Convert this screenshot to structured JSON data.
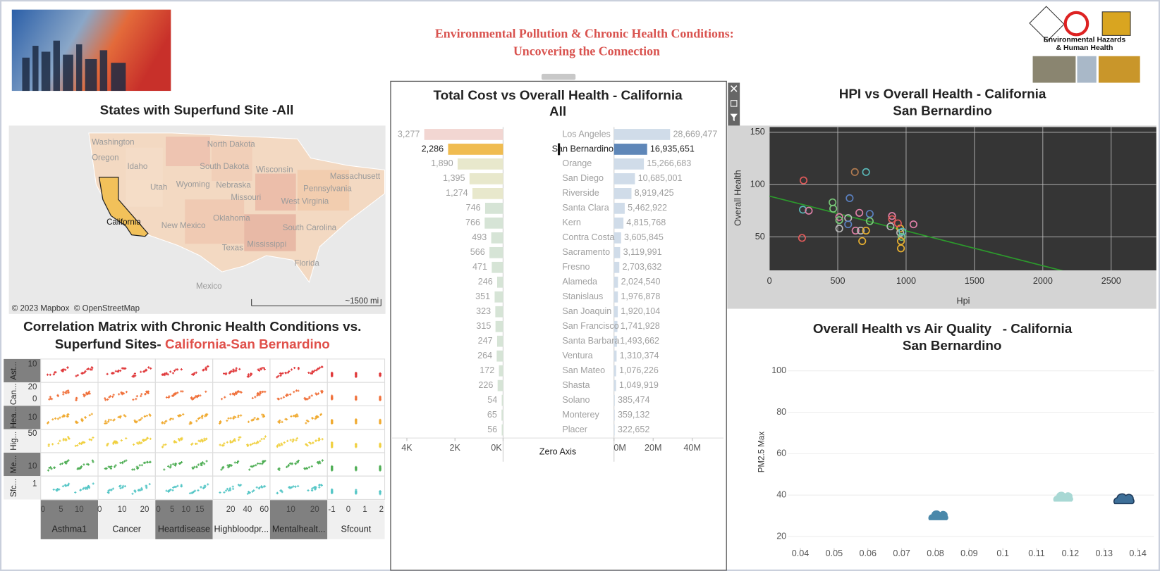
{
  "header": {
    "title_lines": [
      "Environmental Pollution & Chronic Health Conditions:",
      "Uncovering the Connection"
    ],
    "logo_text": [
      "Environmental Hazards",
      "& Human Health"
    ]
  },
  "map": {
    "title": "States with Superfund Site -All",
    "labels": [
      "Washington",
      "Oregon",
      "Idaho",
      "North Dakota",
      "South Dakota",
      "Wisconsin",
      "Massachusett",
      "Utah",
      "Wyoming",
      "Nebraska",
      "Missouri",
      "Pennsylvania",
      "West Virginia",
      "California",
      "New Mexico",
      "Oklahoma",
      "South Carolina",
      "Texas",
      "Mississippi",
      "Florida",
      "Mexico"
    ],
    "credits": [
      "© 2023 Mapbox",
      "© OpenStreetMap"
    ],
    "scale": "~1500 mi",
    "highlight_color": "#f2c15a"
  },
  "chart_data": [
    {
      "type": "splom",
      "title_lines": [
        "Correlation Matrix with Chronic Health Conditions vs.",
        "Superfund Sites- "
      ],
      "title_highlight": "California-San Bernardino",
      "rows": [
        {
          "label": "Ast...",
          "ticks": [
            10
          ],
          "ylim": [
            0,
            13
          ],
          "color": "#e0383a"
        },
        {
          "label": "Can...",
          "ticks": [
            20,
            0
          ],
          "ylim": [
            -11,
            28
          ],
          "color": "#f0703a"
        },
        {
          "label": "Hea...",
          "ticks": [
            10
          ],
          "ylim": [
            0,
            20
          ],
          "color": "#f0aa30"
        },
        {
          "label": "Hig...",
          "ticks": [
            50
          ],
          "ylim": [
            0,
            62
          ],
          "color": "#f0d040"
        },
        {
          "label": "Me...",
          "ticks": [
            10
          ],
          "ylim": [
            -2,
            27
          ],
          "color": "#4fae55"
        },
        {
          "label": "Sfc...",
          "ticks": [
            1
          ],
          "ylim": [
            -1,
            2
          ],
          "color": "#55c6c6"
        }
      ],
      "columns": [
        {
          "label": "Asthma1",
          "ticks": [
            0,
            5,
            10
          ],
          "xlim": [
            -0.6,
            15.2
          ]
        },
        {
          "label": "Cancer",
          "ticks": [
            0,
            10,
            20
          ],
          "xlim": [
            -0.7,
            24.8
          ]
        },
        {
          "label": "Heartdisease",
          "ticks": [
            0,
            5,
            10,
            15
          ],
          "xlim": [
            -1.1,
            19.7
          ]
        },
        {
          "label": "Highbloodpr...",
          "ticks": [
            20,
            40,
            60
          ],
          "xlim": [
            -1.5,
            67
          ]
        },
        {
          "label": "Mentalhealt...",
          "ticks": [
            10,
            20
          ],
          "xlim": [
            1.3,
            25.3
          ]
        },
        {
          "label": "Sfcount",
          "ticks": [
            -1,
            0,
            1,
            2
          ],
          "xlim": [
            -1.27,
            2.2
          ]
        }
      ]
    },
    {
      "type": "diverging-bar",
      "title_lines": [
        "Total Cost vs Overall Health - California",
        "All"
      ],
      "center_label": "Zero Axis",
      "selected_index": 1,
      "categories": [
        "Los Angeles",
        "San Bernardino",
        "Orange",
        "San Diego",
        "Riverside",
        "Santa Clara",
        "Kern",
        "Contra Costa",
        "Sacramento",
        "Fresno",
        "Alameda",
        "Stanislaus",
        "San Joaquin",
        "San Francisco",
        "Santa Barbara",
        "Ventura",
        "San Mateo",
        "Shasta",
        "Solano",
        "Monterey",
        "Placer"
      ],
      "left": {
        "values": [
          3277,
          2286,
          1890,
          1395,
          1274,
          746,
          766,
          493,
          566,
          471,
          246,
          351,
          323,
          315,
          247,
          264,
          172,
          226,
          54,
          65,
          56
        ],
        "value_labels": [
          "3,277",
          "2,286",
          "1,890",
          "1,395",
          "1,274",
          "746",
          "766",
          "493",
          "566",
          "471",
          "246",
          "351",
          "323",
          "315",
          "247",
          "264",
          "172",
          "226",
          "54",
          "65",
          "56"
        ],
        "colors": [
          "#f2d6d2",
          "#f0bc50",
          "#e8e8cc",
          "#e8e8cc",
          "#e8e8cc",
          "#d6e4d6",
          "#d6e4d6",
          "#d6e4d6",
          "#d6e4d6",
          "#d6e4d6",
          "#d6e4d6",
          "#d6e4d6",
          "#d6e4d6",
          "#d6e4d6",
          "#d6e4d6",
          "#d6e4d6",
          "#d6e4d6",
          "#d6e4d6",
          "#d6e4d6",
          "#d6e4d6",
          "#d6e4d6"
        ],
        "xlim": [
          0,
          4615
        ],
        "xticks": [
          {
            "value": 4000,
            "label": "4K"
          },
          {
            "value": 2000,
            "label": "2K"
          },
          {
            "value": 0,
            "label": "0K"
          }
        ]
      },
      "right": {
        "values": [
          28669477,
          16935651,
          15266683,
          10685001,
          8919425,
          5462922,
          4815768,
          3605845,
          3119991,
          2703632,
          2024540,
          1976878,
          1920104,
          1741928,
          1493662,
          1310374,
          1076226,
          1049919,
          385474,
          359132,
          322652
        ],
        "value_labels": [
          "28,669,477",
          "16,935,651",
          "15,266,683",
          "10,685,001",
          "8,919,425",
          "5,462,922",
          "4,815,768",
          "3,605,845",
          "3,119,991",
          "2,703,632",
          "2,024,540",
          "1,976,878",
          "1,920,104",
          "1,741,928",
          "1,493,662",
          "1,310,374",
          "1,076,226",
          "1,049,919",
          "385,474",
          "359,132",
          "322,652"
        ],
        "colors": [
          "#d0dce9",
          "#5f87b8",
          "#d0dce9",
          "#d0dce9",
          "#d0dce9",
          "#d0dce9",
          "#d0dce9",
          "#d0dce9",
          "#d0dce9",
          "#d0dce9",
          "#d0dce9",
          "#d0dce9",
          "#d0dce9",
          "#d0dce9",
          "#d0dce9",
          "#d0dce9",
          "#d0dce9",
          "#d0dce9",
          "#d0dce9",
          "#d0dce9",
          "#d0dce9"
        ],
        "xlim": [
          0,
          56000000
        ],
        "xticks": [
          {
            "value": 0,
            "label": "0M"
          },
          {
            "value": 20000000,
            "label": "20M"
          },
          {
            "value": 40000000,
            "label": "40M"
          }
        ]
      }
    },
    {
      "type": "scatter",
      "title_lines": [
        "HPI vs Overall Health - California",
        "San Bernardino"
      ],
      "x_label": "Hpi",
      "y_label": "Overall Health",
      "xlim": [
        0,
        2830
      ],
      "ylim": [
        18,
        155
      ],
      "xticks": [
        0,
        500,
        1000,
        1500,
        2000,
        2500
      ],
      "yticks": [
        50,
        100,
        150
      ],
      "grid": true,
      "background": "#353535",
      "x": [
        250,
        625,
        707,
        587,
        462,
        245,
        288,
        467,
        511,
        511,
        576,
        658,
        734,
        734,
        511,
        576,
        630,
        668,
        707,
        679,
        239,
        897,
        897,
        886,
        957,
        957,
        967,
        962,
        962,
        1054,
        940,
        973
      ],
      "y": [
        104,
        112,
        112,
        87,
        83,
        76,
        75,
        77,
        69,
        66,
        68,
        73,
        72,
        65,
        58,
        62,
        56,
        56,
        56,
        46,
        49,
        70,
        67,
        60,
        58,
        54,
        50,
        46,
        39,
        62,
        63,
        55
      ],
      "colors": [
        "#e05a5a",
        "#b07a50",
        "#5ab8b8",
        "#5a80c0",
        "#78c878",
        "#5ab8b8",
        "#e080a8",
        "#78c878",
        "#e080a8",
        "#78c878",
        "#b8b8b8",
        "#e080a8",
        "#5a80c0",
        "#78c878",
        "#b8b8b8",
        "#5a80c0",
        "#e080a8",
        "#b8b8b8",
        "#e8b030",
        "#e8b030",
        "#e05a5a",
        "#e080a8",
        "#e05a5a",
        "#b8b8b8",
        "#e8b030",
        "#b8b8b8",
        "#78c878",
        "#e8b030",
        "#e8b030",
        "#e080a8",
        "#e05a5a",
        "#5ab8b8"
      ],
      "trend": {
        "x": [
          0,
          2163
        ],
        "y": [
          89,
          17
        ],
        "color": "#2c9a2c"
      }
    },
    {
      "type": "cloud-scatter",
      "title_lines": [
        "Overall Health vs Air Quality   - California",
        "San Bernardino"
      ],
      "y_label": "PM2.5 Max",
      "xlim": [
        0.0363,
        0.1448
      ],
      "ylim": [
        8,
        105
      ],
      "xticks": [
        0.04,
        0.05,
        0.06,
        0.07,
        0.08,
        0.09,
        0.1,
        0.11,
        0.12,
        0.13,
        0.14
      ],
      "yticks": [
        20,
        40,
        60,
        80,
        100
      ],
      "grid": true,
      "x": [
        0.081,
        0.118,
        0.136
      ],
      "y": [
        30,
        39,
        38
      ],
      "colors": [
        "#4a88aa",
        "#a8d8d4",
        "#3d6f98"
      ]
    }
  ]
}
